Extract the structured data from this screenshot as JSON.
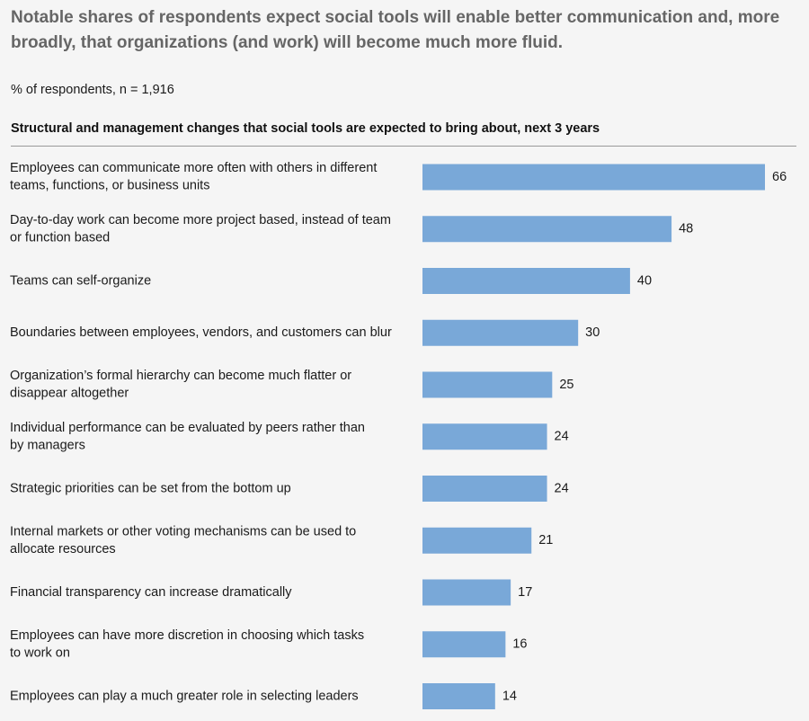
{
  "headline": "Notable shares of respondents expect social tools will enable better communication and, more broadly, that organizations (and work) will become much more fluid.",
  "subtitle": "% of respondents,  n = 1,916",
  "chart_data": {
    "type": "bar",
    "orientation": "horizontal",
    "title": "Structural and management changes that social tools are expected to bring about, next 3 years",
    "bar_color": "#79a8d8",
    "categories": [
      [
        "Employees can communicate more often with others in different",
        "teams, functions, or business units"
      ],
      [
        "Day-to-day work can become more project based, instead of team",
        "or function based"
      ],
      [
        "Teams can self-organize"
      ],
      [
        "Boundaries between employees, vendors, and customers can blur"
      ],
      [
        "Organization’s formal hierarchy can become much flatter or",
        "disappear altogether"
      ],
      [
        "Individual performance can be evaluated by peers rather than",
        "by managers"
      ],
      [
        "Strategic priorities can be set from the bottom up"
      ],
      [
        "Internal markets or other voting mechanisms can be used to",
        "allocate resources"
      ],
      [
        "Financial transparency can increase dramatically"
      ],
      [
        "Employees can have more discretion in choosing which tasks",
        "to work on"
      ],
      [
        "Employees can play a much greater role in selecting leaders"
      ]
    ],
    "values": [
      66,
      48,
      40,
      30,
      25,
      24,
      24,
      21,
      17,
      16,
      14
    ]
  }
}
